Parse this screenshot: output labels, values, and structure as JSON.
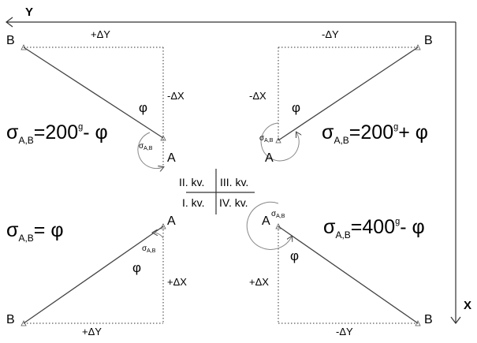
{
  "axes": {
    "y_label": "Y",
    "x_label": "X"
  },
  "points": {
    "a": "A",
    "b": "B"
  },
  "deltas": {
    "plus_dy": "+ΔY",
    "minus_dy": "-ΔY",
    "plus_dx": "+ΔX",
    "minus_dx": "-ΔX"
  },
  "angle": {
    "phi": "φ",
    "sigma": "σ",
    "sub": "A,B"
  },
  "quadrants": {
    "q1": "I. kv.",
    "q2": "II. kv.",
    "q3": "III. kv.",
    "q4": "IV. kv."
  },
  "formulas": {
    "q2": {
      "prefix": "=200",
      "sup": "g",
      "suffix": "- φ"
    },
    "q3": {
      "prefix": "=200",
      "sup": "g",
      "suffix": "+ φ"
    },
    "q1": {
      "prefix": "= φ"
    },
    "q4": {
      "prefix": "=400",
      "sup": "g",
      "suffix": "- φ"
    }
  },
  "colors": {
    "line": "#444444",
    "dotted": "#333333",
    "arc": "#888888",
    "axis": "#333333"
  }
}
